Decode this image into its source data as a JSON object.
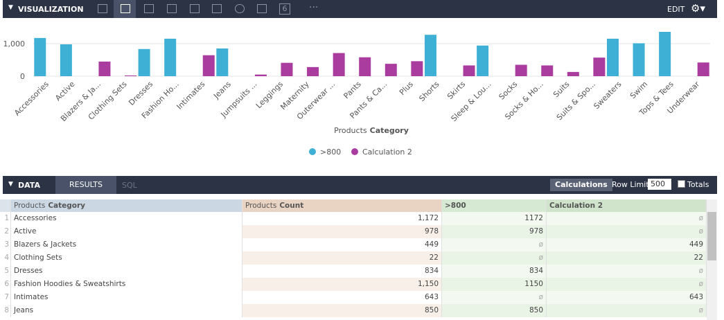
{
  "visualization": {
    "title": "VISUALIZATION",
    "icon_text": "6",
    "edit": "EDIT",
    "chart": {
      "type": "bar",
      "x_title": {
        "view": "Products",
        "field": "Category"
      },
      "categories": [
        "Accessories",
        "Active",
        "Blazers & Ja...",
        "Clothing Sets",
        "Dresses",
        "Fashion Ho...",
        "Intimates",
        "Jeans",
        "Jumpsuits ...",
        "Leggings",
        "Maternity",
        "Outerwear ...",
        "Pants",
        "Pants & Ca...",
        "Plus",
        "Shorts",
        "Skirts",
        "Sleep & Lou...",
        "Socks",
        "Socks & Ho...",
        "Suits",
        "Suits & Spo...",
        "Sweaters",
        "Swim",
        "Tops & Tees",
        "Underwear"
      ],
      "series": [
        {
          "name": ">800",
          "color": "#3fb0d5",
          "values": [
            1172,
            978,
            null,
            null,
            834,
            1150,
            null,
            850,
            null,
            null,
            null,
            null,
            null,
            null,
            null,
            1270,
            null,
            940,
            null,
            null,
            null,
            null,
            1150,
            1010,
            1360,
            null
          ]
        },
        {
          "name": "Calculation 2",
          "color": "#a93c9e",
          "values": [
            null,
            null,
            449,
            22,
            null,
            null,
            643,
            null,
            50,
            410,
            280,
            710,
            580,
            380,
            460,
            null,
            330,
            null,
            350,
            330,
            130,
            570,
            null,
            null,
            null,
            420
          ]
        }
      ],
      "ylim": [
        0,
        1700
      ],
      "yticks": [
        0,
        {
          "value": 1000,
          "label": "1,000"
        }
      ],
      "grid": true
    }
  },
  "data": {
    "title": "DATA",
    "tabs": [
      "RESULTS",
      "SQL"
    ],
    "calculations": "Calculations",
    "row_limit_label": "Row Limit",
    "row_limit": "500",
    "totals": "Totals",
    "table": {
      "headers": [
        {
          "view": "Products",
          "field": "Category"
        },
        {
          "view": "Products",
          "field": "Count"
        },
        {
          "view": "",
          "field": ">800"
        },
        {
          "view": "",
          "field": "Calculation 2"
        }
      ],
      "rows": [
        {
          "num": 1,
          "cells": [
            "Accessories",
            "1,172",
            "1172",
            "ø"
          ]
        },
        {
          "num": 2,
          "cells": [
            "Active",
            "978",
            "978",
            "ø"
          ]
        },
        {
          "num": 3,
          "cells": [
            "Blazers & Jackets",
            "449",
            "ø",
            "449"
          ]
        },
        {
          "num": 4,
          "cells": [
            "Clothing Sets",
            "22",
            "ø",
            "22"
          ]
        },
        {
          "num": 5,
          "cells": [
            "Dresses",
            "834",
            "834",
            "ø"
          ]
        },
        {
          "num": 6,
          "cells": [
            "Fashion Hoodies & Sweatshirts",
            "1,150",
            "1150",
            "ø"
          ]
        },
        {
          "num": 7,
          "cells": [
            "Intimates",
            "643",
            "ø",
            "643"
          ]
        },
        {
          "num": 8,
          "cells": [
            "Jeans",
            "850",
            "850",
            "ø"
          ]
        }
      ]
    }
  }
}
